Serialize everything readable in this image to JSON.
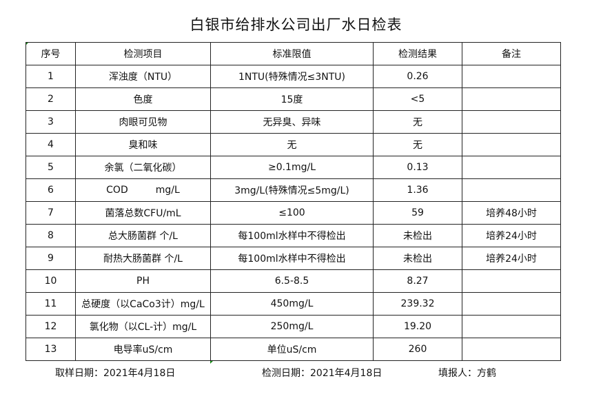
{
  "title": "白银市给排水公司出厂水日检表",
  "headers": [
    "序号",
    "检测项目",
    "标准限值",
    "检测结果",
    "备注"
  ],
  "rows": [
    [
      "1",
      "浑浊度（NTU）",
      "1NTU(特殊情况≤3NTU)",
      "0.26",
      ""
    ],
    [
      "2",
      "色度",
      "15度",
      "<5",
      ""
    ],
    [
      "3",
      "肉眼可见物",
      "无异臭、异味",
      "无",
      ""
    ],
    [
      "4",
      "臭和味",
      "无",
      "无",
      ""
    ],
    [
      "5",
      "余氯（二氧化碳）",
      "≥0.1mg/L",
      "0.13",
      ""
    ],
    [
      "6",
      "COD         mg/L",
      "3mg/L(特殊情况≤5mg/L)",
      "1.36",
      ""
    ],
    [
      "7",
      "菌落总数CFU/mL",
      "≤100",
      "59",
      "培养48小时"
    ],
    [
      "8",
      "总大肠菌群 个/L",
      "每100ml水样中不得检出",
      "未检出",
      "培养24小时"
    ],
    [
      "9",
      "耐热大肠菌群 个/L",
      "每100ml水样中不得检出",
      "未检出",
      "培养24小时"
    ],
    [
      "10",
      "PH",
      "6.5-8.5",
      "8.27",
      ""
    ],
    [
      "11",
      "总硬度（以CaCo3计）mg/L",
      "450mg/L",
      "239.32",
      ""
    ],
    [
      "12",
      "氯化物（以CL-计）mg/L",
      "250mg/L",
      "19.20",
      ""
    ],
    [
      "13",
      "电导率uS/cm",
      "单位uS/cm",
      "260",
      ""
    ]
  ],
  "footer": {
    "sampling_date": "取样日期：2021年4月18日",
    "test_date": "检测日期：2021年4月18日",
    "reporter": "填报人：方鹤"
  }
}
